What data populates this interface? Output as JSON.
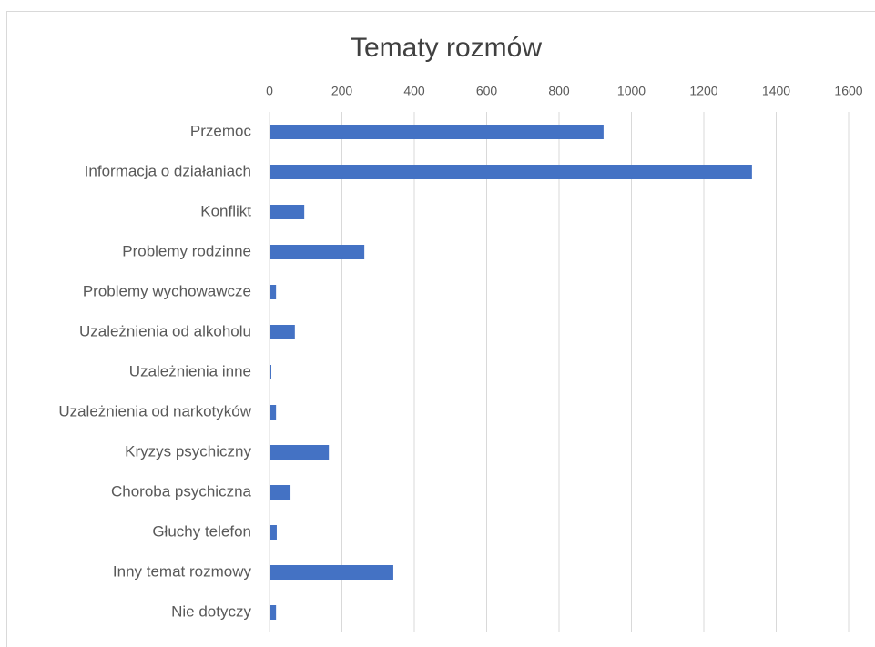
{
  "chart_data": {
    "type": "bar",
    "orientation": "horizontal",
    "title": "Tematy rozmów",
    "categories": [
      "Przemoc",
      "Informacja o działaniach",
      "Konflikt",
      "Problemy rodzinne",
      "Problemy wychowawcze",
      "Uzależnienia od alkoholu",
      "Uzależnienia inne",
      "Uzależnienia od narkotyków",
      "Kryzys psychiczny",
      "Choroba psychiczna",
      "Głuchy telefon",
      "Inny temat rozmowy",
      "Nie dotyczy"
    ],
    "values": [
      923,
      1333,
      96,
      262,
      18,
      70,
      5,
      18,
      164,
      58,
      20,
      342,
      18
    ],
    "color": "#4472c4",
    "xlim": [
      0,
      1600
    ],
    "xticks": [
      0,
      200,
      400,
      600,
      800,
      1000,
      1200,
      1400,
      1600
    ],
    "grid": true
  }
}
